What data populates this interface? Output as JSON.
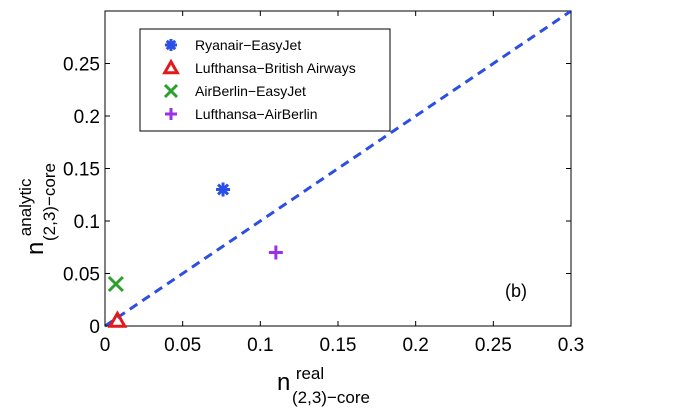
{
  "chart_data": {
    "type": "scatter",
    "title": "",
    "panel_label": "(b)",
    "xlabel": {
      "base": "n",
      "sup": "real",
      "sub": "(2,3)−core"
    },
    "ylabel": {
      "base": "n",
      "sup": "analytic",
      "sub": "(2,3)−core"
    },
    "xlim": [
      0,
      0.3
    ],
    "ylim": [
      0,
      0.3
    ],
    "xticks": [
      0,
      0.05,
      0.1,
      0.15,
      0.2,
      0.25,
      0.3
    ],
    "xtick_labels": [
      "0",
      "0.05",
      "0.1",
      "0.15",
      "0.2",
      "0.25",
      "0.3"
    ],
    "yticks": [
      0,
      0.05,
      0.1,
      0.15,
      0.2,
      0.25
    ],
    "ytick_labels": [
      "0",
      "0.05",
      "0.1",
      "0.15",
      "0.2",
      "0.25"
    ],
    "grid": false,
    "legend_position": "top-left",
    "reference_line": {
      "style": "dashed",
      "color": "#2d4fe0",
      "from": [
        0,
        0
      ],
      "to": [
        0.3,
        0.3
      ]
    },
    "series": [
      {
        "name": "Ryanair−EasyJet",
        "marker": "asterisk",
        "color": "#2b4fe6",
        "points": [
          [
            0.076,
            0.13
          ]
        ]
      },
      {
        "name": "Lufthansa−British Airways",
        "marker": "triangle",
        "color": "#e31a1c",
        "points": [
          [
            0.008,
            0.005
          ]
        ]
      },
      {
        "name": "AirBerlin−EasyJet",
        "marker": "x",
        "color": "#2ca02c",
        "points": [
          [
            0.007,
            0.04
          ]
        ]
      },
      {
        "name": "Lufthansa−AirBerlin",
        "marker": "plus",
        "color": "#9b30e8",
        "points": [
          [
            0.11,
            0.07
          ]
        ]
      }
    ]
  }
}
